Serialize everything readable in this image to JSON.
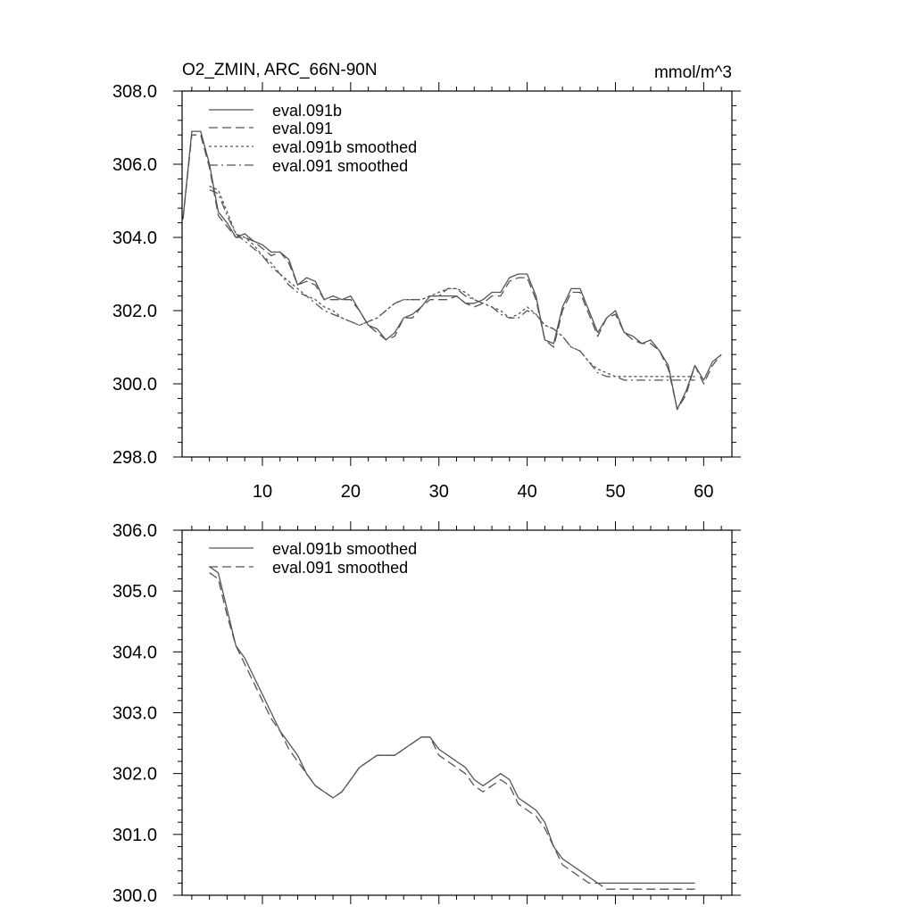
{
  "colors": {
    "background": "#ffffff",
    "axis": "#000000",
    "line": "#555555"
  },
  "chart_data": [
    {
      "type": "line",
      "title": "O2_ZMIN, ARC_66N-90N",
      "units": "mmol/m^3",
      "xlabel": "",
      "ylabel": "",
      "xlim": [
        0.9,
        63.2
      ],
      "ylim": [
        298.0,
        308.0
      ],
      "x_ticks": [
        10,
        20,
        30,
        40,
        50,
        60
      ],
      "y_ticks": [
        298.0,
        300.0,
        302.0,
        304.0,
        306.0,
        308.0
      ],
      "y_tick_labels": [
        "298.0",
        "300.0",
        "302.0",
        "304.0",
        "306.0",
        "308.0"
      ],
      "legend_position": "top-left",
      "series": [
        {
          "name": "eval.091b",
          "dash": "solid",
          "x": [
            1,
            2,
            3,
            4,
            5,
            6,
            7,
            8,
            9,
            10,
            11,
            12,
            13,
            14,
            15,
            16,
            17,
            18,
            19,
            20,
            21,
            22,
            23,
            24,
            25,
            26,
            27,
            28,
            29,
            30,
            31,
            32,
            33,
            34,
            35,
            36,
            37,
            38,
            39,
            40,
            41,
            42,
            43,
            44,
            45,
            46,
            47,
            48,
            49,
            50,
            51,
            52,
            53,
            54,
            55,
            56,
            57,
            58,
            59,
            60,
            61,
            62
          ],
          "values": [
            304.5,
            306.9,
            306.9,
            306.0,
            304.7,
            304.4,
            304.0,
            304.1,
            303.9,
            303.8,
            303.6,
            303.6,
            303.4,
            302.7,
            302.9,
            302.8,
            302.3,
            302.4,
            302.3,
            302.4,
            302.0,
            301.6,
            301.5,
            301.2,
            301.4,
            301.8,
            301.9,
            302.1,
            302.4,
            302.4,
            302.4,
            302.4,
            302.2,
            302.2,
            302.3,
            302.5,
            302.5,
            302.9,
            303.0,
            303.0,
            302.4,
            301.2,
            301.1,
            302.1,
            302.6,
            302.6,
            302.0,
            301.4,
            301.8,
            302.0,
            301.4,
            301.3,
            301.1,
            301.2,
            300.9,
            300.5,
            299.3,
            299.8,
            300.5,
            300.1,
            300.6,
            300.8
          ]
        },
        {
          "name": "eval.091",
          "dash": "dash",
          "x": [
            1,
            2,
            3,
            4,
            5,
            6,
            7,
            8,
            9,
            10,
            11,
            12,
            13,
            14,
            15,
            16,
            17,
            18,
            19,
            20,
            21,
            22,
            23,
            24,
            25,
            26,
            27,
            28,
            29,
            30,
            31,
            32,
            33,
            34,
            35,
            36,
            37,
            38,
            39,
            40,
            41,
            42,
            43,
            44,
            45,
            46,
            47,
            48,
            49,
            50,
            51,
            52,
            53,
            54,
            55,
            56,
            57,
            58,
            59,
            60,
            61,
            62
          ],
          "values": [
            304.5,
            306.8,
            306.8,
            305.9,
            304.6,
            304.3,
            304.0,
            304.0,
            303.9,
            303.7,
            303.5,
            303.6,
            303.3,
            302.7,
            302.8,
            302.7,
            302.3,
            302.3,
            302.3,
            302.3,
            302.0,
            301.6,
            301.4,
            301.2,
            301.3,
            301.8,
            301.8,
            302.1,
            302.3,
            302.3,
            302.3,
            302.4,
            302.2,
            302.1,
            302.2,
            302.4,
            302.4,
            302.8,
            302.9,
            302.9,
            302.3,
            301.2,
            301.0,
            302.0,
            302.5,
            302.5,
            301.9,
            301.3,
            301.8,
            301.9,
            301.4,
            301.2,
            301.1,
            301.1,
            300.9,
            300.4,
            299.3,
            299.7,
            300.5,
            300.0,
            300.5,
            300.8
          ]
        },
        {
          "name": "eval.091b smoothed",
          "dash": "dot",
          "x": [
            4,
            5,
            6,
            7,
            8,
            9,
            10,
            11,
            12,
            13,
            14,
            15,
            16,
            17,
            18,
            19,
            20,
            21,
            22,
            23,
            24,
            25,
            26,
            27,
            28,
            29,
            30,
            31,
            32,
            33,
            34,
            35,
            36,
            37,
            38,
            39,
            40,
            41,
            42,
            43,
            44,
            45,
            46,
            47,
            48,
            49,
            50,
            51,
            52,
            53,
            54,
            55,
            56,
            57,
            58,
            59
          ],
          "values": [
            305.4,
            305.3,
            304.7,
            304.1,
            304.0,
            303.8,
            303.5,
            303.3,
            303.0,
            302.8,
            302.6,
            302.4,
            302.3,
            302.1,
            302.0,
            301.8,
            301.7,
            301.6,
            301.7,
            301.8,
            302.0,
            302.2,
            302.3,
            302.3,
            302.3,
            302.4,
            302.5,
            302.6,
            302.6,
            302.5,
            302.3,
            302.2,
            302.1,
            302.0,
            301.8,
            301.9,
            302.1,
            301.9,
            301.6,
            301.5,
            301.3,
            301.0,
            300.9,
            300.6,
            300.4,
            300.3,
            300.2,
            300.2,
            300.2,
            300.2,
            300.2,
            300.2,
            300.2,
            300.2,
            300.2,
            300.2
          ]
        },
        {
          "name": "eval.091 smoothed",
          "dash": "dashdot",
          "x": [
            4,
            5,
            6,
            7,
            8,
            9,
            10,
            11,
            12,
            13,
            14,
            15,
            16,
            17,
            18,
            19,
            20,
            21,
            22,
            23,
            24,
            25,
            26,
            27,
            28,
            29,
            30,
            31,
            32,
            33,
            34,
            35,
            36,
            37,
            38,
            39,
            40,
            41,
            42,
            43,
            44,
            45,
            46,
            47,
            48,
            49,
            50,
            51,
            52,
            53,
            54,
            55,
            56,
            57,
            58,
            59
          ],
          "values": [
            305.3,
            305.2,
            304.6,
            304.1,
            303.9,
            303.7,
            303.5,
            303.2,
            303.0,
            302.7,
            302.5,
            302.4,
            302.2,
            302.0,
            301.9,
            301.8,
            301.7,
            301.6,
            301.7,
            301.8,
            302.0,
            302.2,
            302.3,
            302.3,
            302.3,
            302.4,
            302.4,
            302.6,
            302.6,
            302.4,
            302.3,
            302.2,
            302.1,
            301.9,
            301.8,
            301.8,
            302.0,
            301.9,
            301.6,
            301.5,
            301.3,
            301.0,
            300.9,
            300.6,
            300.3,
            300.2,
            300.2,
            300.1,
            300.1,
            300.1,
            300.1,
            300.1,
            300.1,
            300.1,
            300.1,
            300.1
          ]
        }
      ]
    },
    {
      "type": "line",
      "title": "",
      "xlabel": "",
      "ylabel": "",
      "xlim": [
        0.9,
        63.2
      ],
      "ylim": [
        300.0,
        306.0
      ],
      "x_ticks": [
        10,
        20,
        30,
        40,
        50,
        60
      ],
      "y_ticks": [
        300.0,
        301.0,
        302.0,
        303.0,
        304.0,
        305.0,
        306.0
      ],
      "y_tick_labels": [
        "300.0",
        "301.0",
        "302.0",
        "303.0",
        "304.0",
        "305.0",
        "306.0"
      ],
      "legend_position": "top-left",
      "series": [
        {
          "name": "eval.091b smoothed",
          "dash": "solid",
          "x": [
            4,
            5,
            6,
            7,
            8,
            9,
            10,
            11,
            12,
            13,
            14,
            15,
            16,
            17,
            18,
            19,
            20,
            21,
            22,
            23,
            24,
            25,
            26,
            27,
            28,
            29,
            30,
            31,
            32,
            33,
            34,
            35,
            36,
            37,
            38,
            39,
            40,
            41,
            42,
            43,
            44,
            45,
            46,
            47,
            48,
            49,
            50,
            51,
            52,
            53,
            54,
            55,
            56,
            57,
            58,
            59
          ],
          "values": [
            305.4,
            305.3,
            304.7,
            304.1,
            303.9,
            303.6,
            303.3,
            303.0,
            302.7,
            302.5,
            302.3,
            302.0,
            301.8,
            301.7,
            301.6,
            301.7,
            301.9,
            302.1,
            302.2,
            302.3,
            302.3,
            302.3,
            302.4,
            302.5,
            302.6,
            302.6,
            302.4,
            302.3,
            302.2,
            302.1,
            301.9,
            301.8,
            301.9,
            302.0,
            301.9,
            301.6,
            301.5,
            301.4,
            301.2,
            300.8,
            300.6,
            300.5,
            300.4,
            300.3,
            300.2,
            300.2,
            300.2,
            300.2,
            300.2,
            300.2,
            300.2,
            300.2,
            300.2,
            300.2,
            300.2,
            300.2
          ]
        },
        {
          "name": "eval.091 smoothed",
          "dash": "dash",
          "x": [
            4,
            5,
            6,
            7,
            8,
            9,
            10,
            11,
            12,
            13,
            14,
            15,
            16,
            17,
            18,
            19,
            20,
            21,
            22,
            23,
            24,
            25,
            26,
            27,
            28,
            29,
            30,
            31,
            32,
            33,
            34,
            35,
            36,
            37,
            38,
            39,
            40,
            41,
            42,
            43,
            44,
            45,
            46,
            47,
            48,
            49,
            50,
            51,
            52,
            53,
            54,
            55,
            56,
            57,
            58,
            59
          ],
          "values": [
            305.3,
            305.2,
            304.6,
            304.1,
            303.8,
            303.5,
            303.2,
            302.9,
            302.7,
            302.4,
            302.2,
            302.0,
            301.8,
            301.7,
            301.6,
            301.7,
            301.9,
            302.1,
            302.2,
            302.3,
            302.3,
            302.3,
            302.4,
            302.5,
            302.6,
            302.6,
            302.3,
            302.2,
            302.1,
            302.0,
            301.8,
            301.7,
            301.8,
            301.9,
            301.8,
            301.5,
            301.4,
            301.3,
            301.1,
            300.8,
            300.5,
            300.4,
            300.3,
            300.2,
            300.2,
            300.1,
            300.1,
            300.1,
            300.1,
            300.1,
            300.1,
            300.1,
            300.1,
            300.1,
            300.1,
            300.1
          ]
        }
      ]
    }
  ]
}
